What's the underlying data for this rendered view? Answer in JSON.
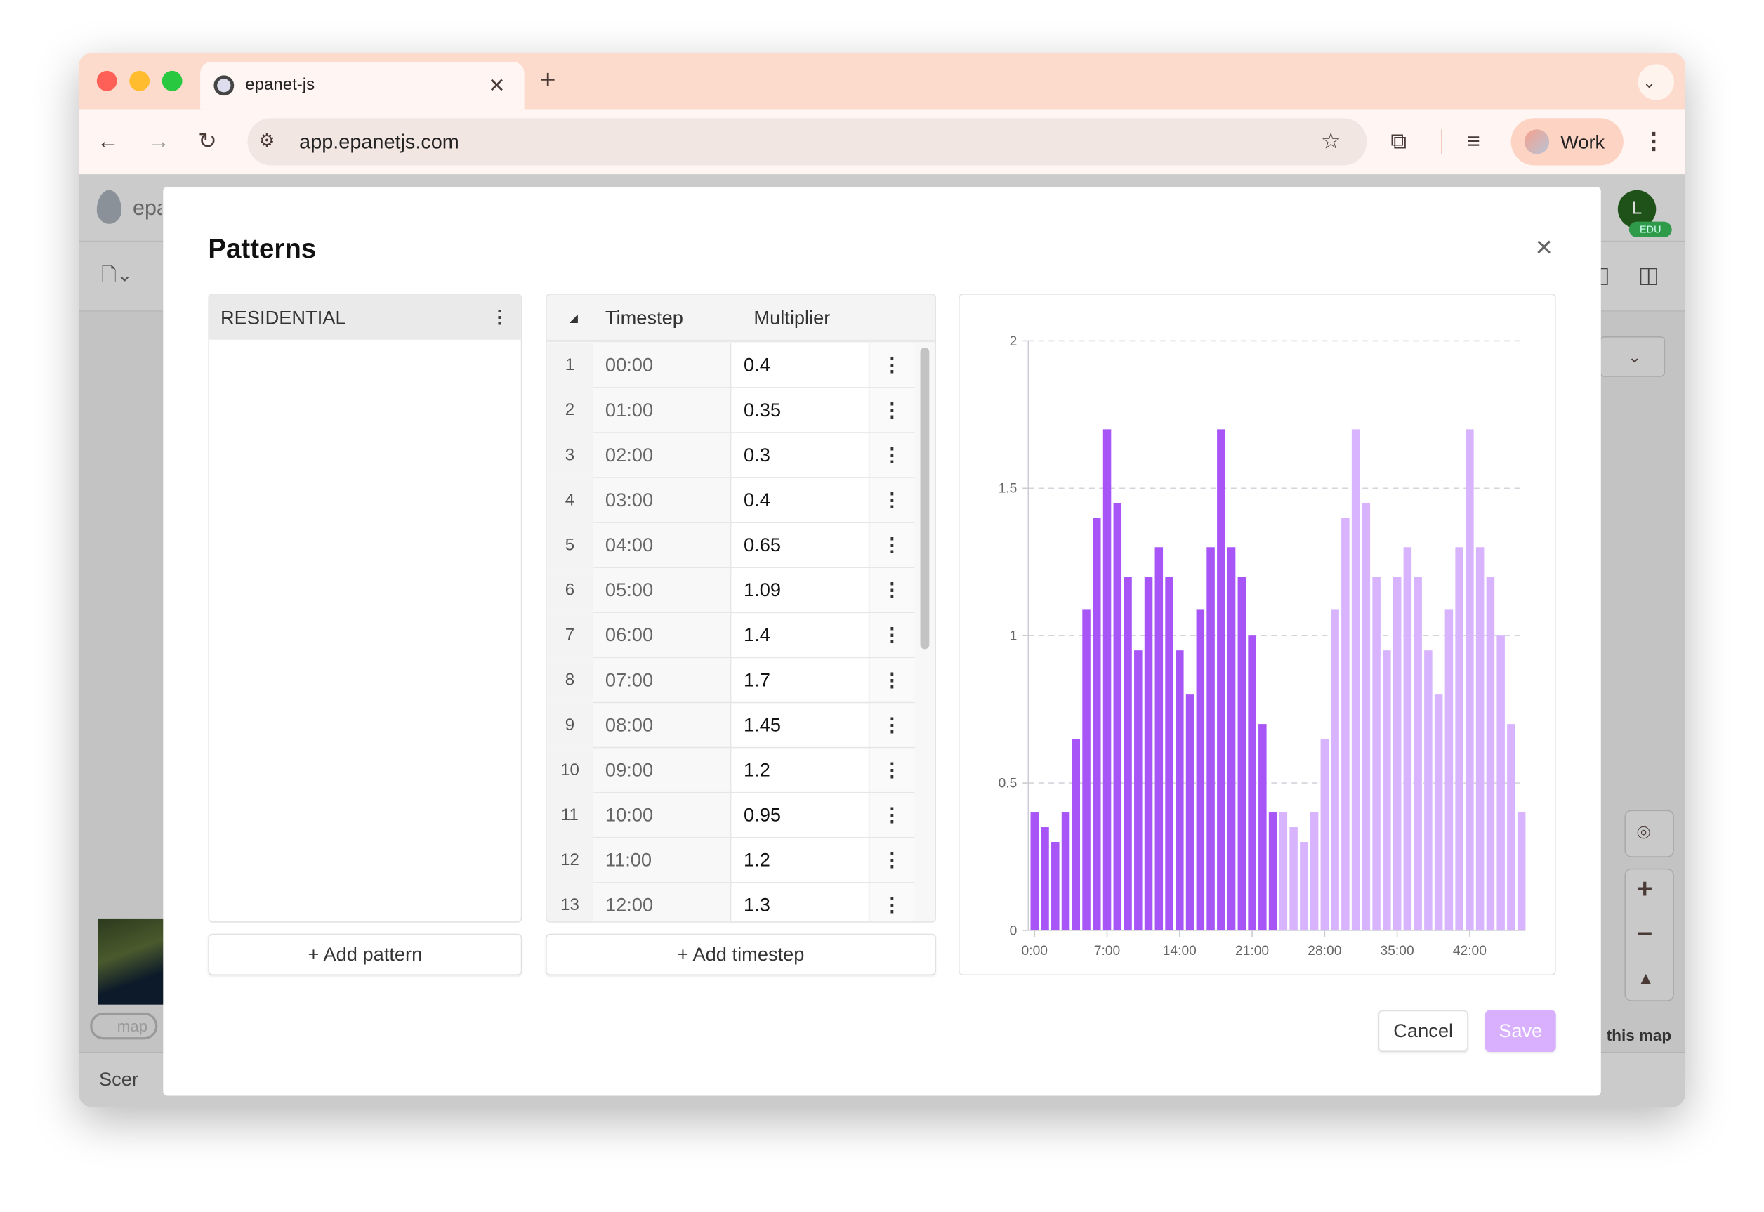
{
  "browser": {
    "tab_title": "epanet-js",
    "url": "app.epanetjs.com",
    "profile_label": "Work"
  },
  "background_app": {
    "logo_text": "epa",
    "avatar_letter": "L",
    "avatar_badge": "EDU",
    "scenarios_label": "Scer",
    "map_attribution": "this map"
  },
  "modal": {
    "title": "Patterns",
    "patterns": [
      {
        "name": "RESIDENTIAL"
      }
    ],
    "add_pattern_label": "+ Add pattern",
    "table_headers": {
      "timestep": "Timestep",
      "multiplier": "Multiplier"
    },
    "rows": [
      {
        "index": "1",
        "timestep": "00:00",
        "multiplier": "0.4"
      },
      {
        "index": "2",
        "timestep": "01:00",
        "multiplier": "0.35"
      },
      {
        "index": "3",
        "timestep": "02:00",
        "multiplier": "0.3"
      },
      {
        "index": "4",
        "timestep": "03:00",
        "multiplier": "0.4"
      },
      {
        "index": "5",
        "timestep": "04:00",
        "multiplier": "0.65"
      },
      {
        "index": "6",
        "timestep": "05:00",
        "multiplier": "1.09"
      },
      {
        "index": "7",
        "timestep": "06:00",
        "multiplier": "1.4"
      },
      {
        "index": "8",
        "timestep": "07:00",
        "multiplier": "1.7"
      },
      {
        "index": "9",
        "timestep": "08:00",
        "multiplier": "1.45"
      },
      {
        "index": "10",
        "timestep": "09:00",
        "multiplier": "1.2"
      },
      {
        "index": "11",
        "timestep": "10:00",
        "multiplier": "0.95"
      },
      {
        "index": "12",
        "timestep": "11:00",
        "multiplier": "1.2"
      },
      {
        "index": "13",
        "timestep": "12:00",
        "multiplier": "1.3"
      }
    ],
    "add_timestep_label": "+ Add timestep",
    "cancel_label": "Cancel",
    "save_label": "Save"
  },
  "chart_data": {
    "type": "bar",
    "x_tick_labels": [
      "0:00",
      "7:00",
      "14:00",
      "21:00",
      "28:00",
      "35:00",
      "42:00"
    ],
    "y_ticks": [
      "0",
      "0.5",
      "1",
      "1.5",
      "2"
    ],
    "ylim": [
      0,
      2
    ],
    "grid": "horizontal dashed",
    "series": [
      {
        "hours": "0-23",
        "color": "#a855f7",
        "values": [
          0.4,
          0.35,
          0.3,
          0.4,
          0.65,
          1.09,
          1.4,
          1.7,
          1.45,
          1.2,
          0.95,
          1.2,
          1.3,
          1.2,
          0.95,
          0.8,
          1.09,
          1.3,
          1.7,
          1.3,
          1.2,
          1.0,
          0.7,
          0.4
        ]
      },
      {
        "hours": "24-47",
        "color": "#d8b4fe",
        "values": [
          0.4,
          0.35,
          0.3,
          0.4,
          0.65,
          1.09,
          1.4,
          1.7,
          1.45,
          1.2,
          0.95,
          1.2,
          1.3,
          1.2,
          0.95,
          0.8,
          1.09,
          1.3,
          1.7,
          1.3,
          1.2,
          1.0,
          0.7,
          0.4
        ]
      }
    ]
  }
}
